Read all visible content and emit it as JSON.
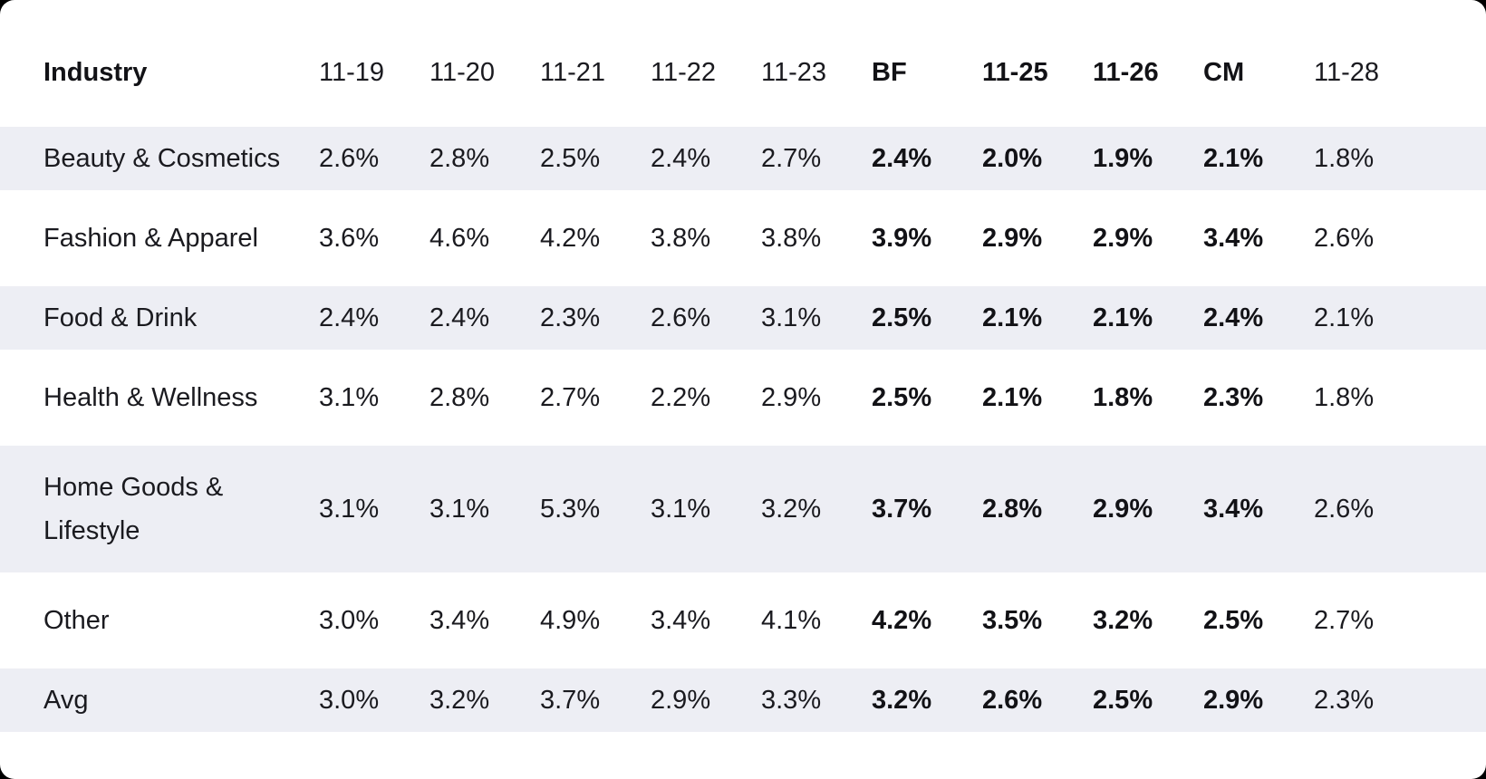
{
  "page": {
    "background_behind_card": "#000000",
    "card_background": "#FFFFFF",
    "stripe_color": "#EDEEF4",
    "text_color": "#1A1A1F"
  },
  "table": {
    "header": [
      {
        "label": "Industry",
        "bold": true
      },
      {
        "label": "11-19",
        "bold": false
      },
      {
        "label": "11-20",
        "bold": false
      },
      {
        "label": "11-21",
        "bold": false
      },
      {
        "label": "11-22",
        "bold": false
      },
      {
        "label": "11-23",
        "bold": false
      },
      {
        "label": "BF",
        "bold": true
      },
      {
        "label": "11-25",
        "bold": true
      },
      {
        "label": "11-26",
        "bold": true
      },
      {
        "label": "CM",
        "bold": true
      },
      {
        "label": "11-28",
        "bold": false
      }
    ],
    "rows": [
      {
        "industry": "Beauty & Cosmetics",
        "shaded": true,
        "values": [
          "2.6%",
          "2.8%",
          "2.5%",
          "2.4%",
          "2.7%",
          "2.4%",
          "2.0%",
          "1.9%",
          "2.1%",
          "1.8%"
        ]
      },
      {
        "industry": "Fashion & Apparel",
        "shaded": false,
        "values": [
          "3.6%",
          "4.6%",
          "4.2%",
          "3.8%",
          "3.8%",
          "3.9%",
          "2.9%",
          "2.9%",
          "3.4%",
          "2.6%"
        ]
      },
      {
        "industry": "Food & Drink",
        "shaded": true,
        "values": [
          "2.4%",
          "2.4%",
          "2.3%",
          "2.6%",
          "3.1%",
          "2.5%",
          "2.1%",
          "2.1%",
          "2.4%",
          "2.1%"
        ]
      },
      {
        "industry": "Health & Wellness",
        "shaded": false,
        "values": [
          "3.1%",
          "2.8%",
          "2.7%",
          "2.2%",
          "2.9%",
          "2.5%",
          "2.1%",
          "1.8%",
          "2.3%",
          "1.8%"
        ]
      },
      {
        "industry": "Home Goods & Lifestyle",
        "shaded": true,
        "values": [
          "3.1%",
          "3.1%",
          "5.3%",
          "3.1%",
          "3.2%",
          "3.7%",
          "2.8%",
          "2.9%",
          "3.4%",
          "2.6%"
        ]
      },
      {
        "industry": "Other",
        "shaded": false,
        "values": [
          "3.0%",
          "3.4%",
          "4.9%",
          "3.4%",
          "4.1%",
          "4.2%",
          "3.5%",
          "3.2%",
          "2.5%",
          "2.7%"
        ]
      },
      {
        "industry": "Avg",
        "shaded": true,
        "values": [
          "3.0%",
          "3.2%",
          "3.7%",
          "2.9%",
          "3.3%",
          "3.2%",
          "2.6%",
          "2.5%",
          "2.9%",
          "2.3%"
        ]
      }
    ]
  },
  "chart_data": {
    "type": "table",
    "title": "",
    "unit": "%",
    "categories": [
      "11-19",
      "11-20",
      "11-21",
      "11-22",
      "11-23",
      "BF",
      "11-25",
      "11-26",
      "CM",
      "11-28"
    ],
    "highlighted_columns": [
      "BF",
      "11-25",
      "11-26",
      "CM"
    ],
    "row_label_header": "Industry",
    "series": [
      {
        "name": "Beauty & Cosmetics",
        "values": [
          2.6,
          2.8,
          2.5,
          2.4,
          2.7,
          2.4,
          2.0,
          1.9,
          2.1,
          1.8
        ]
      },
      {
        "name": "Fashion & Apparel",
        "values": [
          3.6,
          4.6,
          4.2,
          3.8,
          3.8,
          3.9,
          2.9,
          2.9,
          3.4,
          2.6
        ]
      },
      {
        "name": "Food & Drink",
        "values": [
          2.4,
          2.4,
          2.3,
          2.6,
          3.1,
          2.5,
          2.1,
          2.1,
          2.4,
          2.1
        ]
      },
      {
        "name": "Health & Wellness",
        "values": [
          3.1,
          2.8,
          2.7,
          2.2,
          2.9,
          2.5,
          2.1,
          1.8,
          2.3,
          1.8
        ]
      },
      {
        "name": "Home Goods & Lifestyle",
        "values": [
          3.1,
          3.1,
          5.3,
          3.1,
          3.2,
          3.7,
          2.8,
          2.9,
          3.4,
          2.6
        ]
      },
      {
        "name": "Other",
        "values": [
          3.0,
          3.4,
          4.9,
          3.4,
          4.1,
          4.2,
          3.5,
          3.2,
          2.5,
          2.7
        ]
      },
      {
        "name": "Avg",
        "values": [
          3.0,
          3.2,
          3.7,
          2.9,
          3.3,
          3.2,
          2.6,
          2.5,
          2.9,
          2.3
        ]
      }
    ]
  }
}
